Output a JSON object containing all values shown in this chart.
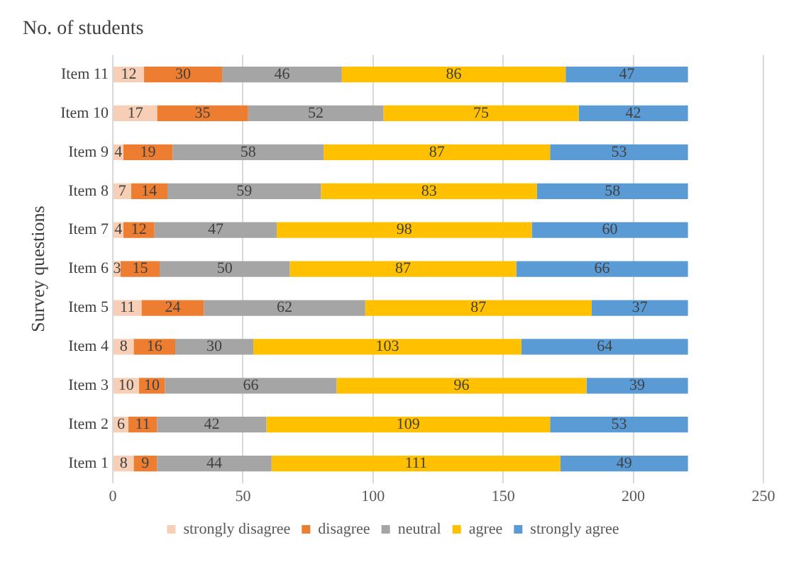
{
  "chart_data": {
    "type": "bar",
    "orientation": "horizontal",
    "stacked": true,
    "title": "No. of students",
    "ylabel": "Survey questions",
    "categories": [
      "Item 11",
      "Item 10",
      "Item 9",
      "Item 8",
      "Item 7",
      "Item 6",
      "Item 5",
      "Item 4",
      "Item 3",
      "Item 2",
      "Item 1"
    ],
    "series": [
      {
        "name": "strongly disagree",
        "color": "#f6cfb6",
        "values": [
          12,
          17,
          4,
          7,
          4,
          3,
          11,
          8,
          10,
          6,
          8
        ]
      },
      {
        "name": "disagree",
        "color": "#ed7d31",
        "values": [
          30,
          35,
          19,
          14,
          12,
          15,
          24,
          16,
          10,
          11,
          9
        ]
      },
      {
        "name": "neutral",
        "color": "#a5a5a5",
        "values": [
          46,
          52,
          58,
          59,
          47,
          50,
          62,
          30,
          66,
          42,
          44
        ]
      },
      {
        "name": "agree",
        "color": "#ffc000",
        "values": [
          86,
          75,
          87,
          83,
          98,
          87,
          87,
          103,
          96,
          109,
          111
        ]
      },
      {
        "name": "strongly agree",
        "color": "#5b9bd5",
        "values": [
          47,
          42,
          53,
          58,
          60,
          66,
          37,
          64,
          39,
          53,
          49
        ]
      }
    ],
    "xlim": [
      0,
      250
    ],
    "xticks": [
      0,
      50,
      100,
      150,
      200,
      250
    ],
    "grid": "x",
    "legend": "bottom",
    "data_labels": true
  }
}
